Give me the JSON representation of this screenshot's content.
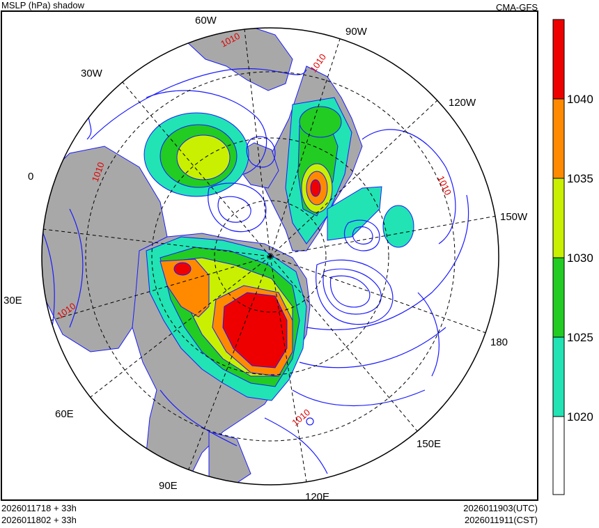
{
  "header": {
    "title": "MSLP (hPa) shadow",
    "model": "CMA-GFS"
  },
  "footer": {
    "init_utc_forecast": "2026011718 + 33h",
    "init_cst_forecast": "2026011802 + 33h",
    "valid_utc": "2026011903(UTC)",
    "valid_cst": "2026011911(CST)"
  },
  "map": {
    "projection": "north-polar-stereographic",
    "longitude_labels": [
      "60W",
      "90W",
      "30W",
      "120W",
      "0",
      "150W",
      "30E",
      "180",
      "60E",
      "150E",
      "90E",
      "120E"
    ],
    "contour_labels": [
      "1010",
      "1010",
      "1010",
      "1010",
      "1010",
      "1010"
    ],
    "contour_color": "#1a1aff",
    "land_color": "#a8a8a8",
    "contour_label_color": "#e00000"
  },
  "colorbar": {
    "levels": [
      "1040",
      "1035",
      "1030",
      "1025",
      "1020"
    ],
    "colors": [
      "#ffffff",
      "#22e3b4",
      "#22cc22",
      "#c8f000",
      "#ff8a00",
      "#ee0000"
    ]
  }
}
